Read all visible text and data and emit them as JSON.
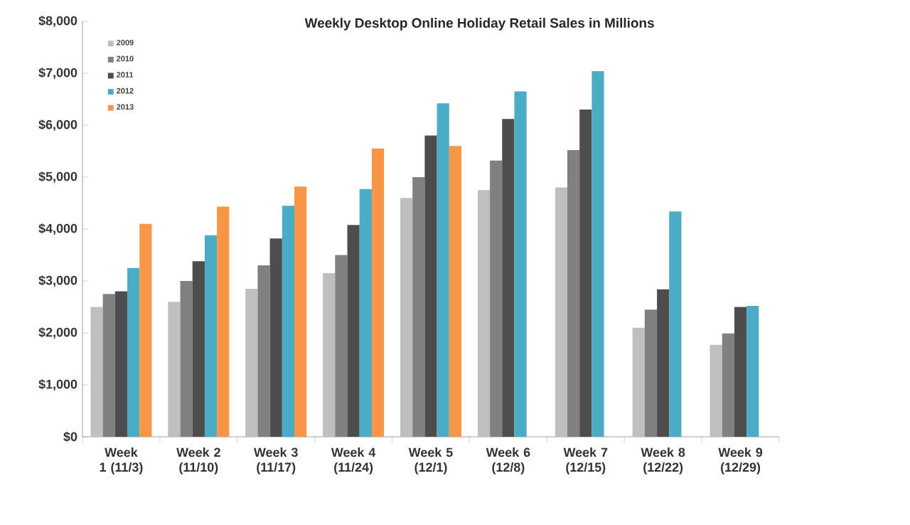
{
  "chart_data": {
    "type": "bar",
    "title": "Weekly Desktop Online Holiday Retail Sales in Millions",
    "categories": [
      "Week 1 (11/3)",
      "Week 2 (11/10)",
      "Week 3 (11/17)",
      "Week 4 (11/24)",
      "Week 5 (12/1)",
      "Week 6 (12/8)",
      "Week 7 (12/15)",
      "Week 8 (12/22)",
      "Week 9 (12/29)"
    ],
    "series": [
      {
        "name": "2009",
        "color": "#bfbfbf",
        "values": [
          2500,
          2600,
          2850,
          3150,
          4600,
          4750,
          4800,
          2100,
          1770
        ]
      },
      {
        "name": "2010",
        "color": "#808080",
        "values": [
          2750,
          3000,
          3300,
          3500,
          5000,
          5320,
          5520,
          2450,
          1990
        ]
      },
      {
        "name": "2011",
        "color": "#4d4d4d",
        "values": [
          2800,
          3380,
          3820,
          4080,
          5800,
          6120,
          6300,
          2840,
          2500
        ]
      },
      {
        "name": "2012",
        "color": "#4bacc6",
        "values": [
          3250,
          3880,
          4450,
          4770,
          6420,
          6650,
          7040,
          4340,
          2520
        ]
      },
      {
        "name": "2013",
        "color": "#f79646",
        "values": [
          4100,
          4430,
          4820,
          5550,
          5600,
          null,
          null,
          null,
          null
        ]
      }
    ],
    "ylim": [
      0,
      8000
    ],
    "yticks": [
      {
        "value": 0,
        "label": "$0"
      },
      {
        "value": 1000,
        "label": "$1,000"
      },
      {
        "value": 2000,
        "label": "$2,000"
      },
      {
        "value": 3000,
        "label": "$3,000"
      },
      {
        "value": 4000,
        "label": "$4,000"
      },
      {
        "value": 5000,
        "label": "$5,000"
      },
      {
        "value": 6000,
        "label": "$6,000"
      },
      {
        "value": 7000,
        "label": "$7,000"
      },
      {
        "value": 8000,
        "label": "$8,000"
      }
    ],
    "legend": "top left",
    "grid": false
  }
}
